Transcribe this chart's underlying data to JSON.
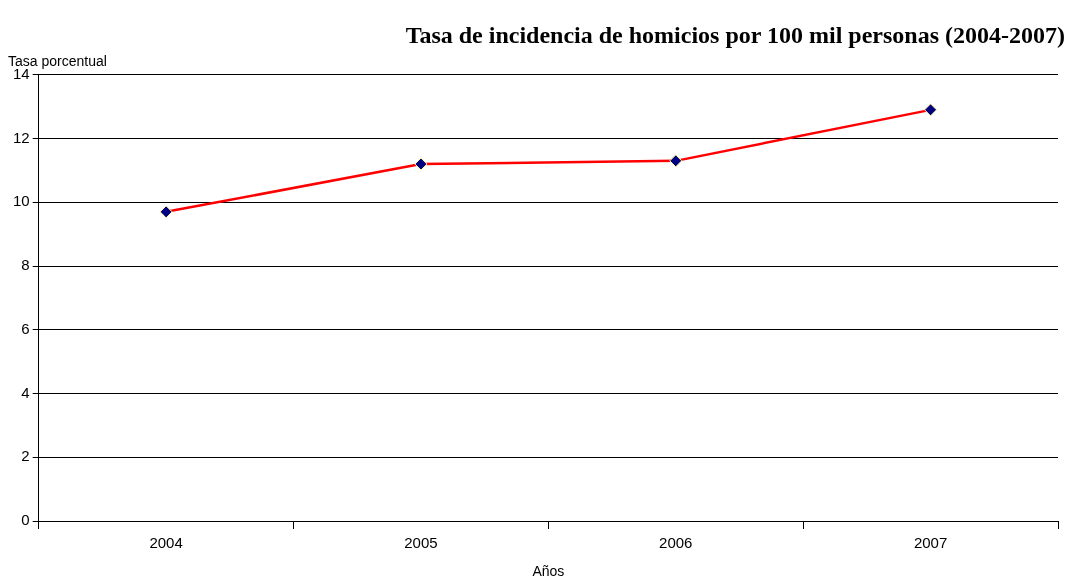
{
  "chart_data": {
    "type": "line",
    "title": "Tasa de incidencia de homicios por 100 mil personas (2004-2007)",
    "xlabel": "Años",
    "ylabel": "Tasa porcentual",
    "categories": [
      "2004",
      "2005",
      "2006",
      "2007"
    ],
    "series": [
      {
        "color": "#ff0000",
        "values": [
          9.7,
          11.2,
          11.3,
          12.9
        ]
      }
    ],
    "ylim": [
      0,
      14
    ],
    "yticks": [
      0,
      2,
      4,
      6,
      8,
      10,
      12,
      14
    ],
    "grid": "y",
    "legend": false,
    "marker": "diamond",
    "line_style": "solid"
  }
}
